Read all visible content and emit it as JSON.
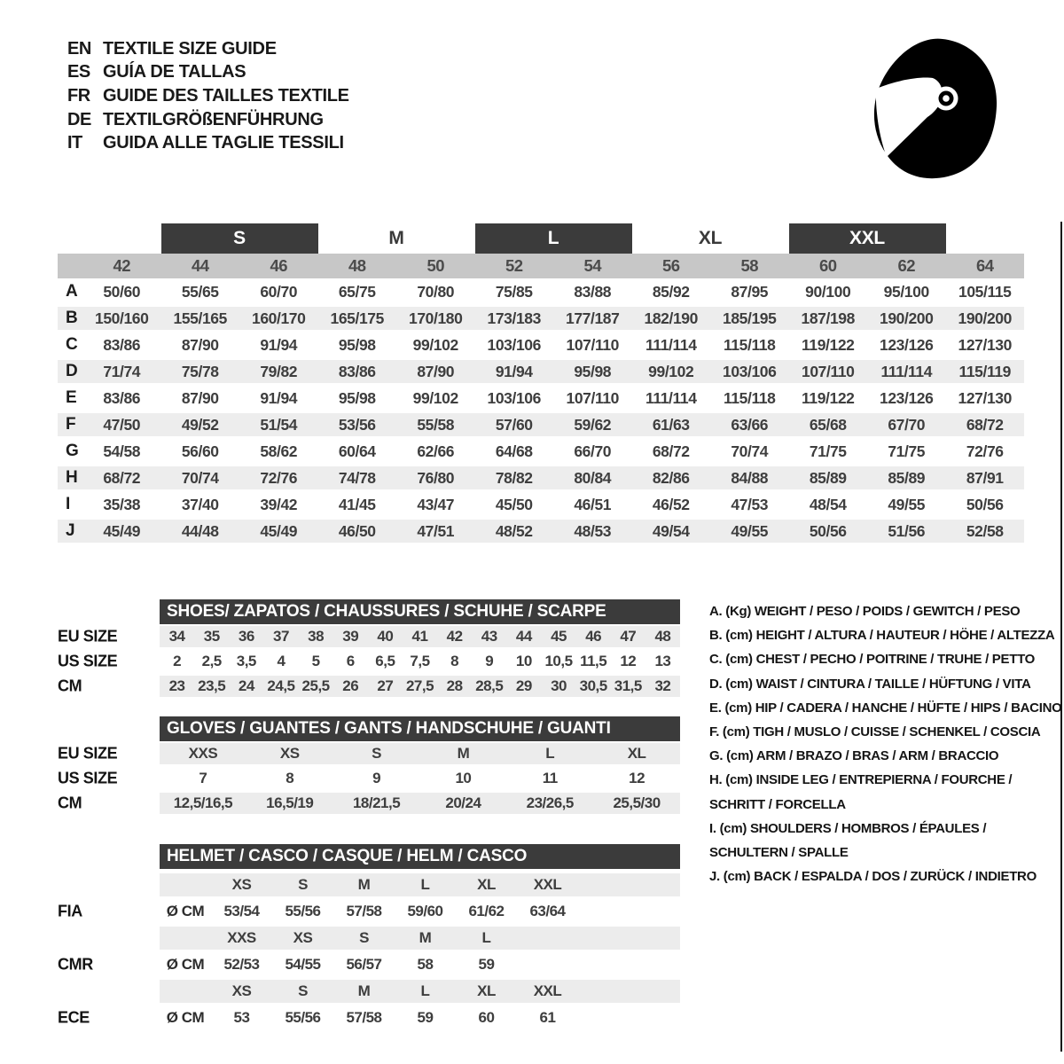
{
  "languages": [
    {
      "code": "EN",
      "title": "TEXTILE SIZE GUIDE"
    },
    {
      "code": "ES",
      "title": "GUÍA DE TALLAS"
    },
    {
      "code": "FR",
      "title": "GUIDE DES TAILLES TEXTILE"
    },
    {
      "code": "DE",
      "title": "TEXTILGRÖßENFÜHRUNG"
    },
    {
      "code": "IT",
      "title": "GUIDA ALLE TAGLIE TESSILI"
    }
  ],
  "colors": {
    "dark_bar": "#3b3b3b",
    "numeric_band": "#c7c7c7",
    "stripe": "#ededed",
    "text_dark": "#3e3e3e"
  },
  "textile": {
    "size_groups": [
      {
        "label": "S",
        "boxed": true
      },
      {
        "label": "M",
        "boxed": false
      },
      {
        "label": "L",
        "boxed": true
      },
      {
        "label": "XL",
        "boxed": false
      },
      {
        "label": "XXL",
        "boxed": true
      }
    ],
    "columns": [
      "42",
      "44",
      "46",
      "48",
      "50",
      "52",
      "54",
      "56",
      "58",
      "60",
      "62",
      "64"
    ],
    "rows": [
      {
        "letter": "A",
        "values": [
          "50/60",
          "55/65",
          "60/70",
          "65/75",
          "70/80",
          "75/85",
          "83/88",
          "85/92",
          "87/95",
          "90/100",
          "95/100",
          "105/115"
        ]
      },
      {
        "letter": "B",
        "values": [
          "150/160",
          "155/165",
          "160/170",
          "165/175",
          "170/180",
          "173/183",
          "177/187",
          "182/190",
          "185/195",
          "187/198",
          "190/200",
          "190/200"
        ]
      },
      {
        "letter": "C",
        "values": [
          "83/86",
          "87/90",
          "91/94",
          "95/98",
          "99/102",
          "103/106",
          "107/110",
          "111/114",
          "115/118",
          "119/122",
          "123/126",
          "127/130"
        ]
      },
      {
        "letter": "D",
        "values": [
          "71/74",
          "75/78",
          "79/82",
          "83/86",
          "87/90",
          "91/94",
          "95/98",
          "99/102",
          "103/106",
          "107/110",
          "111/114",
          "115/119"
        ]
      },
      {
        "letter": "E",
        "values": [
          "83/86",
          "87/90",
          "91/94",
          "95/98",
          "99/102",
          "103/106",
          "107/110",
          "111/114",
          "115/118",
          "119/122",
          "123/126",
          "127/130"
        ]
      },
      {
        "letter": "F",
        "values": [
          "47/50",
          "49/52",
          "51/54",
          "53/56",
          "55/58",
          "57/60",
          "59/62",
          "61/63",
          "63/66",
          "65/68",
          "67/70",
          "68/72"
        ]
      },
      {
        "letter": "G",
        "values": [
          "54/58",
          "56/60",
          "58/62",
          "60/64",
          "62/66",
          "64/68",
          "66/70",
          "68/72",
          "70/74",
          "71/75",
          "71/75",
          "72/76"
        ]
      },
      {
        "letter": "H",
        "values": [
          "68/72",
          "70/74",
          "72/76",
          "74/78",
          "76/80",
          "78/82",
          "80/84",
          "82/86",
          "84/88",
          "85/89",
          "85/89",
          "87/91"
        ]
      },
      {
        "letter": "I",
        "values": [
          "35/38",
          "37/40",
          "39/42",
          "41/45",
          "43/47",
          "45/50",
          "46/51",
          "46/52",
          "47/53",
          "48/54",
          "49/55",
          "50/56"
        ]
      },
      {
        "letter": "J",
        "values": [
          "45/49",
          "44/48",
          "45/49",
          "46/50",
          "47/51",
          "48/52",
          "48/53",
          "49/54",
          "49/55",
          "50/56",
          "51/56",
          "52/58"
        ]
      }
    ]
  },
  "shoes": {
    "title": "SHOES/ ZAPATOS / CHAUSSURES / SCHUHE / SCARPE",
    "rows": [
      {
        "label": "EU SIZE",
        "striped": true,
        "values": [
          "34",
          "35",
          "36",
          "37",
          "38",
          "39",
          "40",
          "41",
          "42",
          "43",
          "44",
          "45",
          "46",
          "47",
          "48"
        ]
      },
      {
        "label": "US SIZE",
        "striped": false,
        "values": [
          "2",
          "2,5",
          "3,5",
          "4",
          "5",
          "6",
          "6,5",
          "7,5",
          "8",
          "9",
          "10",
          "10,5",
          "11,5",
          "12",
          "13"
        ]
      },
      {
        "label": "CM",
        "striped": true,
        "values": [
          "23",
          "23,5",
          "24",
          "24,5",
          "25,5",
          "26",
          "27",
          "27,5",
          "28",
          "28,5",
          "29",
          "30",
          "30,5",
          "31,5",
          "32"
        ]
      }
    ]
  },
  "gloves": {
    "title": "GLOVES / GUANTES / GANTS / HANDSCHUHE / GUANTI",
    "rows": [
      {
        "label": "EU SIZE",
        "striped": true,
        "values": [
          "XXS",
          "XS",
          "S",
          "M",
          "L",
          "XL"
        ]
      },
      {
        "label": "US SIZE",
        "striped": false,
        "values": [
          "7",
          "8",
          "9",
          "10",
          "11",
          "12"
        ]
      },
      {
        "label": "CM",
        "striped": true,
        "values": [
          "12,5/16,5",
          "16,5/19",
          "18/21,5",
          "20/24",
          "23/26,5",
          "25,5/30"
        ]
      }
    ]
  },
  "helmet": {
    "title": "HELMET / CASCO / CASQUE / HELM / CASCO",
    "diameter_label": "Ø CM",
    "standards": [
      {
        "name": "FIA",
        "sizes": [
          "XS",
          "S",
          "M",
          "L",
          "XL",
          "XXL"
        ],
        "values": [
          "53/54",
          "55/56",
          "57/58",
          "59/60",
          "61/62",
          "63/64"
        ]
      },
      {
        "name": "CMR",
        "sizes": [
          "XXS",
          "XS",
          "S",
          "M",
          "L"
        ],
        "values": [
          "52/53",
          "54/55",
          "56/57",
          "58",
          "59"
        ]
      },
      {
        "name": "ECE",
        "sizes": [
          "XS",
          "S",
          "M",
          "L",
          "XL",
          "XXL"
        ],
        "values": [
          "53",
          "55/56",
          "57/58",
          "59",
          "60",
          "61"
        ]
      }
    ]
  },
  "legend": [
    {
      "lines": [
        "A. (Kg) WEIGHT / PESO / POIDS / GEWITCH / PESO"
      ]
    },
    {
      "lines": [
        "B. (cm) HEIGHT / ALTURA / HAUTEUR / HÖHE / ALTEZZA"
      ]
    },
    {
      "lines": [
        "C. (cm) CHEST / PECHO / POITRINE / TRUHE / PETTO"
      ]
    },
    {
      "lines": [
        "D. (cm) WAIST / CINTURA / TAILLE / HÜFTUNG / VITA"
      ]
    },
    {
      "lines": [
        "E. (cm) HIP / CADERA / HANCHE / HÜFTE / HIPS / BACINO"
      ]
    },
    {
      "lines": [
        "F. (cm) TIGH / MUSLO / CUISSE / SCHENKEL / COSCIA"
      ]
    },
    {
      "lines": [
        "G. (cm) ARM / BRAZO / BRAS / ARM / BRACCIO"
      ]
    },
    {
      "lines": [
        "H. (cm) INSIDE LEG / ENTREPIERNA / FOURCHE /",
        "SCHRITT / FORCELLA"
      ]
    },
    {
      "lines": [
        "I. (cm) SHOULDERS / HOMBROS / ÉPAULES /",
        "SCHULTERN / SPALLE"
      ]
    },
    {
      "lines": [
        "J. (cm) BACK / ESPALDA / DOS / ZURÜCK / INDIETRO"
      ]
    }
  ]
}
